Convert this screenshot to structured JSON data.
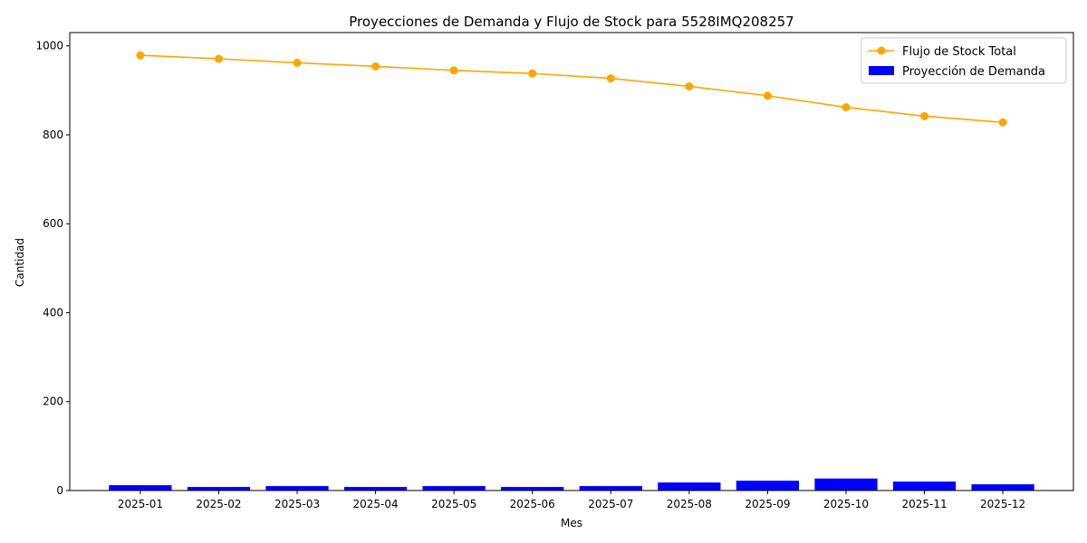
{
  "chart_data": {
    "type": "bar",
    "title": "Proyecciones de Demanda y Flujo de Stock para 5528IMQ208257",
    "xlabel": "Mes",
    "ylabel": "Cantidad",
    "categories": [
      "2025-01",
      "2025-02",
      "2025-03",
      "2025-04",
      "2025-05",
      "2025-06",
      "2025-07",
      "2025-08",
      "2025-09",
      "2025-10",
      "2025-11",
      "2025-12"
    ],
    "ylim": [
      0,
      1030
    ],
    "yticks": [
      0,
      200,
      400,
      600,
      800,
      1000
    ],
    "grid": false,
    "legend_position": "top-right",
    "series": [
      {
        "name": "Flujo de Stock Total",
        "kind": "line",
        "marker": "circle",
        "color": "#ffa500",
        "values": [
          979,
          971,
          962,
          954,
          945,
          938,
          927,
          909,
          888,
          862,
          842,
          828
        ]
      },
      {
        "name": "Proyección de Demanda",
        "kind": "bar",
        "color": "#0000ff",
        "values": [
          12,
          8,
          10,
          8,
          10,
          8,
          10,
          18,
          22,
          27,
          20,
          14
        ]
      }
    ]
  }
}
